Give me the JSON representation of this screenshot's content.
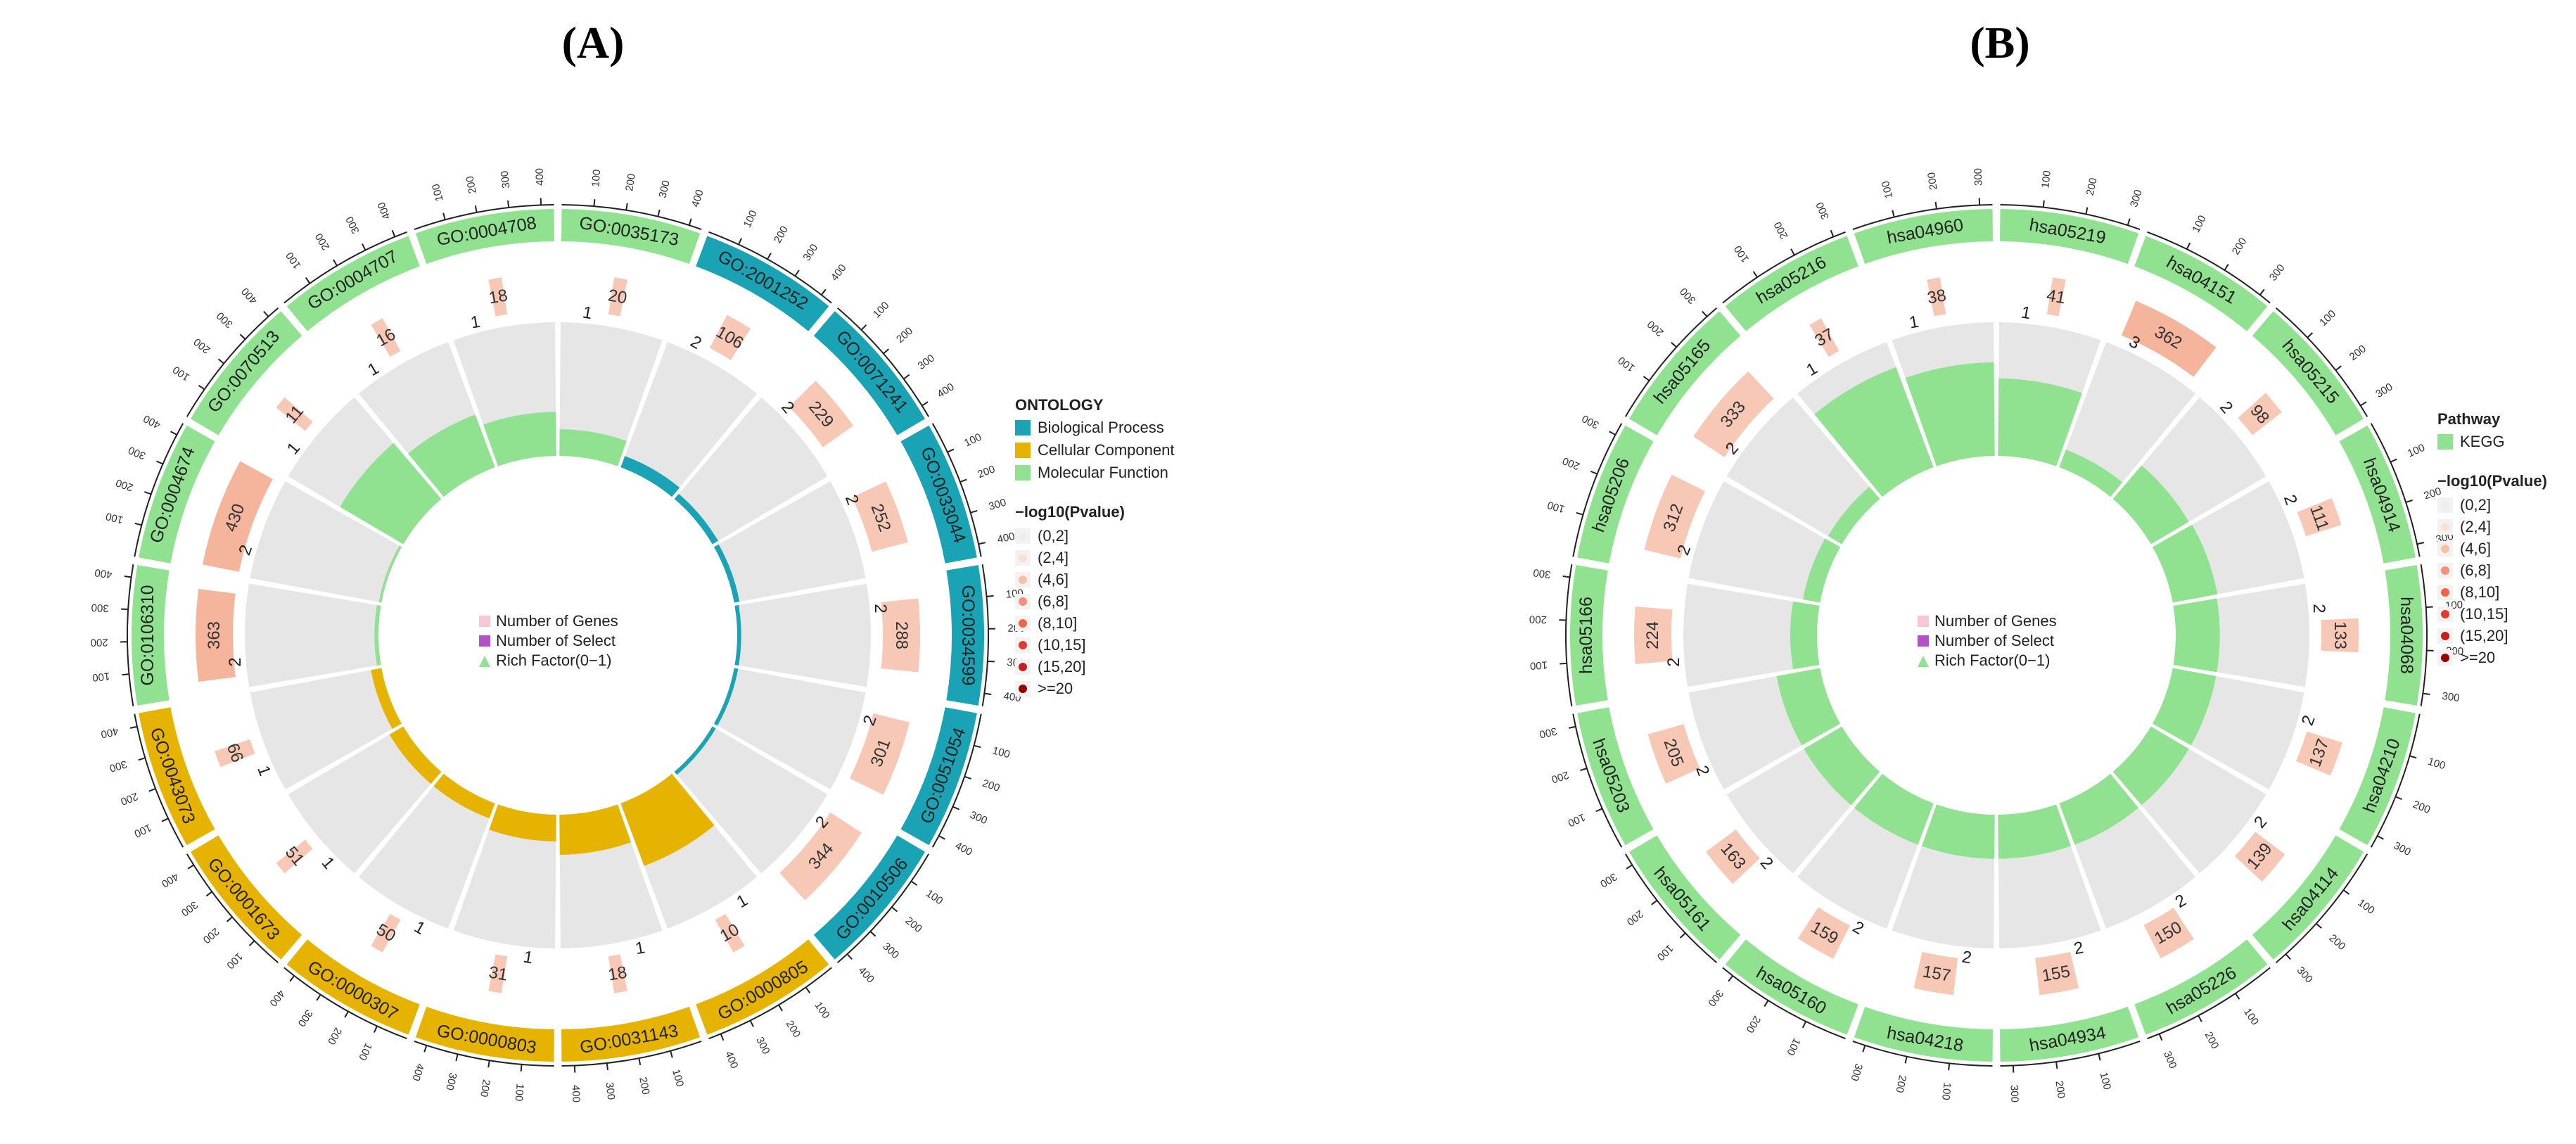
{
  "chart_data": [
    {
      "type": "circular-enrichment",
      "panel": "(A)",
      "legend_title": "ONTOLOGY",
      "ontology_legend": [
        {
          "label": "Biological Process",
          "color": "#1aa3b5"
        },
        {
          "label": "Cellular Component",
          "color": "#e6b400"
        },
        {
          "label": "Molecular Function",
          "color": "#90e290"
        }
      ],
      "terms": [
        {
          "id": "GO:0035173",
          "ontology": "Molecular Function",
          "genes": 20,
          "select": 1,
          "rich_factor": 0.2
        },
        {
          "id": "GO:2001252",
          "ontology": "Biological Process",
          "genes": 106,
          "select": 2,
          "rich_factor": 0.09
        },
        {
          "id": "GO:0071241",
          "ontology": "Biological Process",
          "genes": 229,
          "select": 2,
          "rich_factor": 0.05
        },
        {
          "id": "GO:0033044",
          "ontology": "Biological Process",
          "genes": 252,
          "select": 2,
          "rich_factor": 0.04
        },
        {
          "id": "GO:0034599",
          "ontology": "Biological Process",
          "genes": 288,
          "select": 2,
          "rich_factor": 0.03
        },
        {
          "id": "GO:0051054",
          "ontology": "Biological Process",
          "genes": 301,
          "select": 2,
          "rich_factor": 0.03
        },
        {
          "id": "GO:0010506",
          "ontology": "Biological Process",
          "genes": 344,
          "select": 2,
          "rich_factor": 0.03
        },
        {
          "id": "GO:0000805",
          "ontology": "Cellular Component",
          "genes": 10,
          "select": 1,
          "rich_factor": 0.5
        },
        {
          "id": "GO:0031143",
          "ontology": "Cellular Component",
          "genes": 18,
          "select": 1,
          "rich_factor": 0.3
        },
        {
          "id": "GO:0000803",
          "ontology": "Cellular Component",
          "genes": 31,
          "select": 1,
          "rich_factor": 0.2
        },
        {
          "id": "GO:0000307",
          "ontology": "Cellular Component",
          "genes": 50,
          "select": 1,
          "rich_factor": 0.12
        },
        {
          "id": "GO:0001673",
          "ontology": "Cellular Component",
          "genes": 51,
          "select": 1,
          "rich_factor": 0.12
        },
        {
          "id": "GO:0043073",
          "ontology": "Cellular Component",
          "genes": 66,
          "select": 1,
          "rich_factor": 0.08
        },
        {
          "id": "GO:0106310",
          "ontology": "Molecular Function",
          "genes": 363,
          "select": 2,
          "rich_factor": 0.03
        },
        {
          "id": "GO:0004674",
          "ontology": "Molecular Function",
          "genes": 430,
          "select": 2,
          "rich_factor": 0.02
        },
        {
          "id": "GO:0070513",
          "ontology": "Molecular Function",
          "genes": 11,
          "select": 1,
          "rich_factor": 0.55
        },
        {
          "id": "GO:0004707",
          "ontology": "Molecular Function",
          "genes": 16,
          "select": 1,
          "rich_factor": 0.42
        },
        {
          "id": "GO:0004708",
          "ontology": "Molecular Function",
          "genes": 18,
          "select": 1,
          "rich_factor": 0.33
        }
      ],
      "pvalue_legend_title": "−log10(Pvalue)",
      "pvalue_legend": [
        {
          "label": "(0,2]",
          "color": "#eeeeee"
        },
        {
          "label": "(2,4]",
          "color": "#fde0d5"
        },
        {
          "label": "(4,6]",
          "color": "#fbbfa8"
        },
        {
          "label": "(6,8]",
          "color": "#f59078"
        },
        {
          "label": "(8,10]",
          "color": "#ef6548"
        },
        {
          "label": "(10,15]",
          "color": "#e03b2c"
        },
        {
          "label": "(15,20]",
          "color": "#c81d1d"
        },
        {
          "label": ">=20",
          "color": "#990000"
        }
      ],
      "inner_legend": [
        "Number of Genes",
        "Number of Select",
        "Rich Factor(0−1)"
      ],
      "ticks": [
        "100",
        "200",
        "300",
        "400"
      ]
    },
    {
      "type": "circular-enrichment",
      "panel": "(B)",
      "legend_title": "Pathway",
      "ontology_legend": [
        {
          "label": "KEGG",
          "color": "#90e290"
        }
      ],
      "terms": [
        {
          "id": "hsa05219",
          "genes": 41,
          "select": 1,
          "rich_factor": 0.58
        },
        {
          "id": "hsa04151",
          "genes": 362,
          "select": 3,
          "rich_factor": 0.14
        },
        {
          "id": "hsa05215",
          "genes": 98,
          "select": 2,
          "rich_factor": 0.33
        },
        {
          "id": "hsa04914",
          "genes": 111,
          "select": 2,
          "rich_factor": 0.34
        },
        {
          "id": "hsa04068",
          "genes": 133,
          "select": 2,
          "rich_factor": 0.33
        },
        {
          "id": "hsa04210",
          "genes": 137,
          "select": 2,
          "rich_factor": 0.33
        },
        {
          "id": "hsa04114",
          "genes": 139,
          "select": 2,
          "rich_factor": 0.33
        },
        {
          "id": "hsa05226",
          "genes": 150,
          "select": 2,
          "rich_factor": 0.33
        },
        {
          "id": "hsa04934",
          "genes": 155,
          "select": 2,
          "rich_factor": 0.33
        },
        {
          "id": "hsa04218",
          "genes": 157,
          "select": 2,
          "rich_factor": 0.33
        },
        {
          "id": "hsa05160",
          "genes": 159,
          "select": 2,
          "rich_factor": 0.33
        },
        {
          "id": "hsa05161",
          "genes": 163,
          "select": 2,
          "rich_factor": 0.33
        },
        {
          "id": "hsa05203",
          "genes": 205,
          "select": 2,
          "rich_factor": 0.33
        },
        {
          "id": "hsa05166",
          "genes": 224,
          "select": 2,
          "rich_factor": 0.2
        },
        {
          "id": "hsa05206",
          "genes": 312,
          "select": 2,
          "rich_factor": 0.13
        },
        {
          "id": "hsa05165",
          "genes": 333,
          "select": 2,
          "rich_factor": 0.12
        },
        {
          "id": "hsa05216",
          "genes": 37,
          "select": 1,
          "rich_factor": 0.8
        },
        {
          "id": "hsa04960",
          "genes": 38,
          "select": 1,
          "rich_factor": 0.7
        }
      ],
      "pvalue_legend_title": "−log10(Pvalue)",
      "pvalue_legend": [
        {
          "label": "(0,2]",
          "color": "#eeeeee"
        },
        {
          "label": "(2,4]",
          "color": "#fde0d5"
        },
        {
          "label": "(4,6]",
          "color": "#fbbfa8"
        },
        {
          "label": "(6,8]",
          "color": "#f59078"
        },
        {
          "label": "(8,10]",
          "color": "#ef6548"
        },
        {
          "label": "(10,15]",
          "color": "#e03b2c"
        },
        {
          "label": "(15,20]",
          "color": "#c81d1d"
        },
        {
          "label": ">=20",
          "color": "#990000"
        }
      ],
      "inner_legend": [
        "Number of Genes",
        "Number of Select",
        "Rich Factor(0−1)"
      ],
      "ticks": [
        "100",
        "200",
        "300"
      ]
    }
  ],
  "style": {
    "gene_bar_color": "#f7c8b5",
    "gene_bar_color_strong": "#f5b49c",
    "grey_fill": "#e6e6e6",
    "select_legend_color": "#b451c9",
    "genes_legend_color": "#f7c7d4"
  }
}
